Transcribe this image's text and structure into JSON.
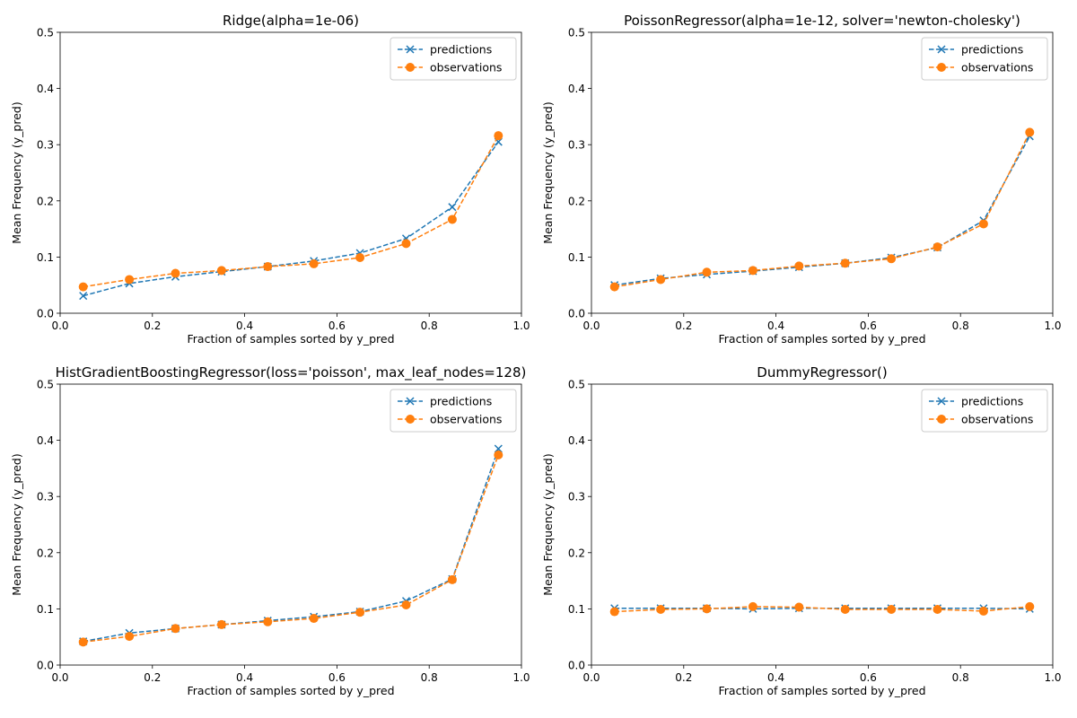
{
  "chart_data": [
    {
      "type": "line",
      "title": "Ridge(alpha=1e-06)",
      "xlabel": "Fraction of samples sorted by y_pred",
      "ylabel": "Mean Frequency (y_pred)",
      "xlim": [
        0,
        1
      ],
      "ylim": [
        0,
        0.5
      ],
      "xticks": [
        "0.0",
        "0.2",
        "0.4",
        "0.6",
        "0.8",
        "1.0"
      ],
      "yticks": [
        "0.0",
        "0.1",
        "0.2",
        "0.3",
        "0.4",
        "0.5"
      ],
      "legend": "top-right",
      "grid": false,
      "x": [
        0.05,
        0.15,
        0.25,
        0.35,
        0.45,
        0.55,
        0.65,
        0.75,
        0.85,
        0.95
      ],
      "series": [
        {
          "name": "predictions",
          "color": "#1f77b4",
          "marker": "x",
          "values": [
            0.031,
            0.053,
            0.065,
            0.074,
            0.083,
            0.093,
            0.107,
            0.133,
            0.189,
            0.305
          ]
        },
        {
          "name": "observations",
          "color": "#ff7f0e",
          "marker": "o",
          "values": [
            0.047,
            0.06,
            0.071,
            0.076,
            0.083,
            0.088,
            0.099,
            0.124,
            0.167,
            0.316
          ]
        }
      ]
    },
    {
      "type": "line",
      "title": "PoissonRegressor(alpha=1e-12, solver='newton-cholesky')",
      "xlabel": "Fraction of samples sorted by y_pred",
      "ylabel": "Mean Frequency (y_pred)",
      "xlim": [
        0,
        1
      ],
      "ylim": [
        0,
        0.5
      ],
      "xticks": [
        "0.0",
        "0.2",
        "0.4",
        "0.6",
        "0.8",
        "1.0"
      ],
      "yticks": [
        "0.0",
        "0.1",
        "0.2",
        "0.3",
        "0.4",
        "0.5"
      ],
      "legend": "top-right",
      "grid": false,
      "x": [
        0.05,
        0.15,
        0.25,
        0.35,
        0.45,
        0.55,
        0.65,
        0.75,
        0.85,
        0.95
      ],
      "series": [
        {
          "name": "predictions",
          "color": "#1f77b4",
          "marker": "x",
          "values": [
            0.05,
            0.062,
            0.069,
            0.075,
            0.082,
            0.089,
            0.099,
            0.117,
            0.165,
            0.315
          ]
        },
        {
          "name": "observations",
          "color": "#ff7f0e",
          "marker": "o",
          "values": [
            0.047,
            0.06,
            0.073,
            0.076,
            0.084,
            0.089,
            0.097,
            0.118,
            0.159,
            0.322
          ]
        }
      ]
    },
    {
      "type": "line",
      "title": "HistGradientBoostingRegressor(loss='poisson', max_leaf_nodes=128)",
      "xlabel": "Fraction of samples sorted by y_pred",
      "ylabel": "Mean Frequency (y_pred)",
      "xlim": [
        0,
        1
      ],
      "ylim": [
        0,
        0.5
      ],
      "xticks": [
        "0.0",
        "0.2",
        "0.4",
        "0.6",
        "0.8",
        "1.0"
      ],
      "yticks": [
        "0.0",
        "0.1",
        "0.2",
        "0.3",
        "0.4",
        "0.5"
      ],
      "legend": "top-right",
      "grid": false,
      "x": [
        0.05,
        0.15,
        0.25,
        0.35,
        0.45,
        0.55,
        0.65,
        0.75,
        0.85,
        0.95
      ],
      "series": [
        {
          "name": "predictions",
          "color": "#1f77b4",
          "marker": "x",
          "values": [
            0.042,
            0.057,
            0.065,
            0.072,
            0.079,
            0.086,
            0.095,
            0.114,
            0.153,
            0.385
          ]
        },
        {
          "name": "observations",
          "color": "#ff7f0e",
          "marker": "o",
          "values": [
            0.041,
            0.051,
            0.065,
            0.072,
            0.077,
            0.083,
            0.094,
            0.107,
            0.152,
            0.374
          ]
        }
      ]
    },
    {
      "type": "line",
      "title": "DummyRegressor()",
      "xlabel": "Fraction of samples sorted by y_pred",
      "ylabel": "Mean Frequency (y_pred)",
      "xlim": [
        0,
        1
      ],
      "ylim": [
        0,
        0.5
      ],
      "xticks": [
        "0.0",
        "0.2",
        "0.4",
        "0.6",
        "0.8",
        "1.0"
      ],
      "yticks": [
        "0.0",
        "0.1",
        "0.2",
        "0.3",
        "0.4",
        "0.5"
      ],
      "legend": "top-right",
      "grid": false,
      "x": [
        0.05,
        0.15,
        0.25,
        0.35,
        0.45,
        0.55,
        0.65,
        0.75,
        0.85,
        0.95
      ],
      "series": [
        {
          "name": "predictions",
          "color": "#1f77b4",
          "marker": "x",
          "values": [
            0.101,
            0.101,
            0.101,
            0.1,
            0.101,
            0.101,
            0.101,
            0.101,
            0.101,
            0.1
          ]
        },
        {
          "name": "observations",
          "color": "#ff7f0e",
          "marker": "o",
          "values": [
            0.095,
            0.099,
            0.1,
            0.104,
            0.103,
            0.099,
            0.099,
            0.099,
            0.096,
            0.104
          ]
        }
      ]
    }
  ]
}
